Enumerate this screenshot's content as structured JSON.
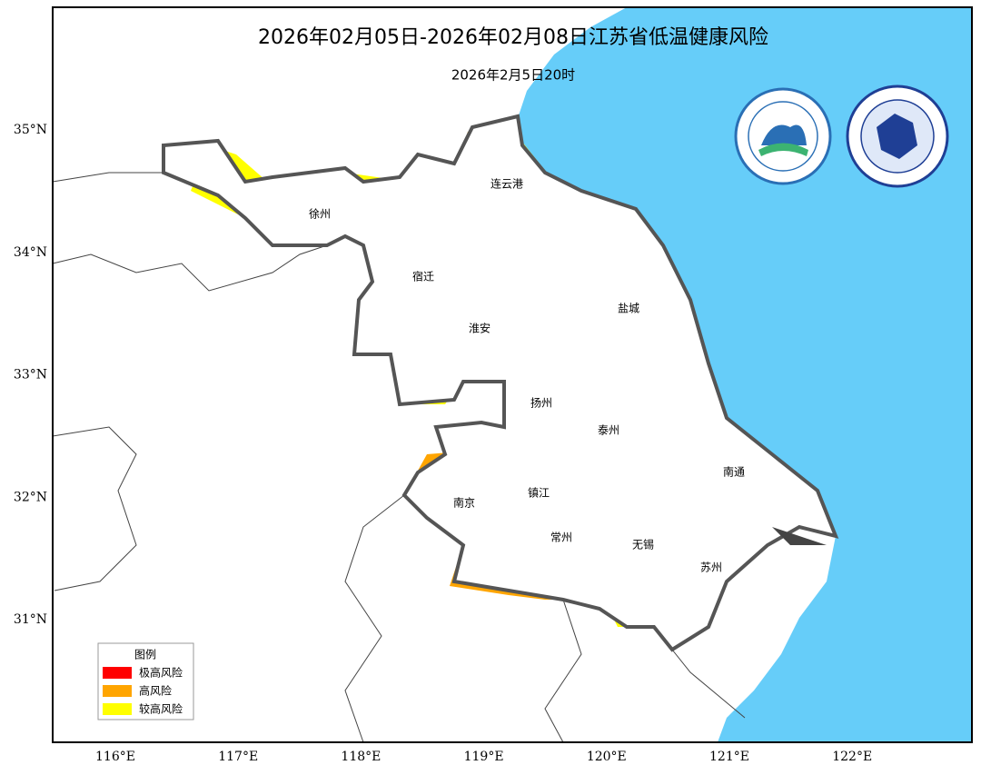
{
  "header": {
    "title": "2026年02月05日-2026年02月08日江苏省低温健康风险",
    "subtitle": "2026年2月5日20时"
  },
  "cities": [
    "徐州",
    "连云港",
    "宿迁",
    "淮安",
    "盐城",
    "扬州",
    "泰州",
    "南通",
    "南京",
    "镇江",
    "常州",
    "无锡",
    "苏州"
  ],
  "latitude_labels": [
    "35°N",
    "34°N",
    "33°N",
    "32°N",
    "31°N"
  ],
  "longitude_labels": [
    "116°E",
    "117°E",
    "118°E",
    "119°E",
    "120°E",
    "121°E",
    "122°E"
  ],
  "legend": {
    "title": "图例",
    "items": [
      {
        "label": "极高风险",
        "color": "#ff0000"
      },
      {
        "label": "高风险",
        "color": "#ffa500"
      },
      {
        "label": "较高风险",
        "color": "#ffff00"
      }
    ]
  }
}
